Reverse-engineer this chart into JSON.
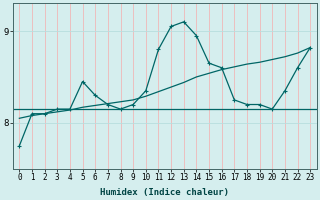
{
  "xlabel": "Humidex (Indice chaleur)",
  "bg_color": "#d5eeee",
  "line_color": "#006666",
  "grid_color_v": "#f0b8b8",
  "grid_color_h": "#b8dede",
  "x_values": [
    0,
    1,
    2,
    3,
    4,
    5,
    6,
    7,
    8,
    9,
    10,
    11,
    12,
    13,
    14,
    15,
    16,
    17,
    18,
    19,
    20,
    21,
    22,
    23
  ],
  "y_data": [
    7.75,
    8.1,
    8.1,
    8.15,
    8.15,
    8.45,
    8.3,
    8.2,
    8.15,
    8.2,
    8.35,
    8.8,
    9.05,
    9.1,
    8.95,
    8.65,
    8.6,
    8.25,
    8.2,
    8.2,
    8.15,
    8.35,
    8.6,
    8.82
  ],
  "y_trend": [
    8.05,
    8.08,
    8.1,
    8.12,
    8.14,
    8.17,
    8.19,
    8.21,
    8.23,
    8.25,
    8.29,
    8.34,
    8.39,
    8.44,
    8.5,
    8.54,
    8.58,
    8.61,
    8.64,
    8.66,
    8.69,
    8.72,
    8.76,
    8.82
  ],
  "y_flat": 8.15,
  "ylim": [
    7.5,
    9.3
  ],
  "yticks": [
    8,
    9
  ],
  "xlim": [
    -0.5,
    23.5
  ],
  "markersize": 2.5,
  "tick_fontsize": 5.5,
  "xlabel_fontsize": 6.5
}
